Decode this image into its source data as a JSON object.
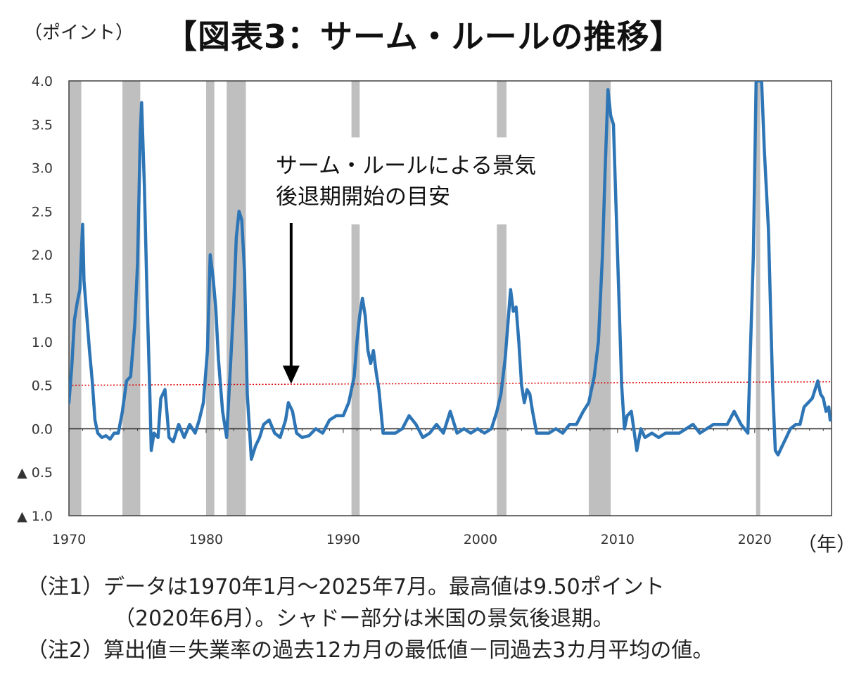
{
  "header": {
    "unit": "（ポイント）",
    "title": "【図表3：サーム・ルールの推移】"
  },
  "annotation": {
    "line1": "サーム・ルールによる景気",
    "line2": "後退期開始の目安"
  },
  "x_unit": "（年）",
  "notes": {
    "note1_line1": "（注1）データは1970年1月～2025年7月。最高値は9.50ポイント",
    "note1_line2": "（2020年6月）。シャドー部分は米国の景気後退期。",
    "note2": "（注2）算出値＝失業率の過去12カ月の最低値－同過去3カ月平均の値。"
  },
  "colors": {
    "series": "#2e75b6",
    "threshold": "#e00000",
    "recession": "#bfbfbf",
    "axis": "#404040"
  },
  "chart_data": {
    "type": "line",
    "ylim": [
      -1.0,
      4.0
    ],
    "xlim": [
      1970.0,
      2025.6
    ],
    "y_ticks": [
      {
        "value": 4.0,
        "label": "4.0"
      },
      {
        "value": 3.5,
        "label": "3.5"
      },
      {
        "value": 3.0,
        "label": "3.0"
      },
      {
        "value": 2.5,
        "label": "2.5"
      },
      {
        "value": 2.0,
        "label": "2.0"
      },
      {
        "value": 1.5,
        "label": "1.5"
      },
      {
        "value": 1.0,
        "label": "1.0"
      },
      {
        "value": 0.5,
        "label": "0.5"
      },
      {
        "value": 0.0,
        "label": "0.0"
      },
      {
        "value": -0.5,
        "label": "▲ 0.5"
      },
      {
        "value": -1.0,
        "label": "▲ 1.0"
      }
    ],
    "x_ticks": [
      {
        "value": 1970,
        "label": "1970"
      },
      {
        "value": 1980,
        "label": "1980"
      },
      {
        "value": 1990,
        "label": "1990"
      },
      {
        "value": 2000,
        "label": "2000"
      },
      {
        "value": 2010,
        "label": "2010"
      },
      {
        "value": 2020,
        "label": "2020"
      }
    ],
    "recessions": [
      [
        1970.0,
        1970.9
      ],
      [
        1973.9,
        1975.2
      ],
      [
        1980.0,
        1980.6
      ],
      [
        1981.5,
        1982.9
      ],
      [
        1990.6,
        1991.2
      ],
      [
        2001.2,
        2001.9
      ],
      [
        2007.9,
        2009.5
      ],
      [
        2020.1,
        2020.4
      ]
    ],
    "threshold": {
      "x": [
        1970.0,
        2025.6
      ],
      "y": [
        0.5,
        0.54
      ]
    },
    "arrow_target": {
      "x": 1986.2,
      "y": 0.5
    },
    "series": [
      {
        "x": [
          1970.0,
          1970.2,
          1970.4,
          1970.6,
          1970.8,
          1970.9,
          1971.0,
          1971.1,
          1971.3,
          1971.5,
          1971.7,
          1971.9,
          1972.1,
          1972.4,
          1972.7,
          1973.0,
          1973.3,
          1973.6,
          1973.9,
          1974.2,
          1974.5,
          1974.8,
          1975.0,
          1975.1,
          1975.2,
          1975.3,
          1975.5,
          1975.7,
          1975.9,
          1976.0,
          1976.2,
          1976.5,
          1976.7,
          1977.0,
          1977.3,
          1977.6,
          1978.0,
          1978.4,
          1978.8,
          1979.2,
          1979.5,
          1979.8,
          1980.1,
          1980.3,
          1980.5,
          1980.7,
          1980.9,
          1981.2,
          1981.5,
          1981.8,
          1982.0,
          1982.2,
          1982.4,
          1982.6,
          1982.8,
          1983.0,
          1983.3,
          1983.6,
          1983.9,
          1984.2,
          1984.6,
          1985.0,
          1985.4,
          1985.8,
          1986.0,
          1986.3,
          1986.6,
          1987.0,
          1987.5,
          1988.0,
          1988.5,
          1989.0,
          1989.5,
          1990.0,
          1990.4,
          1990.8,
          1991.0,
          1991.2,
          1991.4,
          1991.6,
          1991.8,
          1992.0,
          1992.2,
          1992.4,
          1992.6,
          1992.9,
          1993.3,
          1993.8,
          1994.3,
          1994.8,
          1995.3,
          1995.8,
          1996.3,
          1996.8,
          1997.3,
          1997.8,
          1998.3,
          1998.8,
          1999.3,
          1999.8,
          2000.3,
          2000.8,
          2001.2,
          2001.5,
          2001.8,
          2002.0,
          2002.2,
          2002.4,
          2002.6,
          2002.8,
          2003.0,
          2003.2,
          2003.4,
          2003.6,
          2003.8,
          2004.1,
          2004.5,
          2005.0,
          2005.5,
          2006.0,
          2006.5,
          2007.0,
          2007.5,
          2007.9,
          2008.3,
          2008.6,
          2008.9,
          2009.1,
          2009.3,
          2009.5,
          2009.7,
          2009.9,
          2010.1,
          2010.3,
          2010.5,
          2010.7,
          2011.0,
          2011.4,
          2011.7,
          2012.0,
          2012.5,
          2013.0,
          2013.5,
          2014.0,
          2014.5,
          2015.0,
          2015.5,
          2016.0,
          2016.5,
          2017.0,
          2017.5,
          2018.0,
          2018.5,
          2019.0,
          2019.5,
          2019.9,
          2020.1,
          2020.3,
          2020.5,
          2020.7,
          2021.0,
          2021.3,
          2021.5,
          2021.7,
          2022.0,
          2022.3,
          2022.6,
          2023.0,
          2023.3,
          2023.6,
          2023.9,
          2024.2,
          2024.4,
          2024.6,
          2024.8,
          2025.0,
          2025.2,
          2025.4,
          2025.5
        ],
        "y": [
          0.3,
          0.7,
          1.25,
          1.45,
          1.6,
          2.0,
          2.35,
          1.7,
          1.3,
          0.9,
          0.55,
          0.1,
          -0.05,
          -0.1,
          -0.08,
          -0.12,
          -0.05,
          -0.05,
          0.2,
          0.55,
          0.6,
          1.2,
          1.9,
          2.6,
          3.4,
          3.75,
          2.8,
          1.5,
          0.4,
          -0.25,
          -0.05,
          -0.1,
          0.35,
          0.45,
          -0.1,
          -0.15,
          0.05,
          -0.1,
          0.05,
          -0.05,
          0.1,
          0.3,
          0.9,
          2.0,
          1.75,
          1.4,
          0.8,
          0.2,
          -0.1,
          0.8,
          1.4,
          2.2,
          2.5,
          2.4,
          1.8,
          0.4,
          -0.35,
          -0.2,
          -0.1,
          0.05,
          0.1,
          -0.05,
          -0.1,
          0.1,
          0.3,
          0.2,
          -0.05,
          -0.1,
          -0.08,
          0.0,
          -0.05,
          0.1,
          0.15,
          0.15,
          0.3,
          0.6,
          1.0,
          1.3,
          1.5,
          1.3,
          0.9,
          0.75,
          0.9,
          0.65,
          0.45,
          -0.05,
          -0.05,
          -0.05,
          0.0,
          0.15,
          0.05,
          -0.1,
          -0.05,
          0.05,
          -0.05,
          0.2,
          -0.05,
          0.0,
          -0.05,
          0.0,
          -0.05,
          0.0,
          0.2,
          0.4,
          0.8,
          1.2,
          1.6,
          1.35,
          1.4,
          1.0,
          0.5,
          0.3,
          0.45,
          0.4,
          0.2,
          -0.05,
          -0.05,
          -0.05,
          0.0,
          -0.05,
          0.05,
          0.05,
          0.2,
          0.3,
          0.6,
          1.0,
          2.0,
          3.0,
          3.9,
          3.6,
          3.5,
          2.5,
          1.5,
          0.5,
          0.0,
          0.15,
          0.2,
          -0.25,
          0.0,
          -0.1,
          -0.05,
          -0.1,
          -0.05,
          -0.05,
          -0.05,
          0.0,
          0.05,
          -0.05,
          0.0,
          0.05,
          0.05,
          0.05,
          0.2,
          0.05,
          -0.05,
          2.0,
          4.0,
          4.0,
          4.0,
          3.2,
          2.3,
          0.5,
          -0.25,
          -0.3,
          -0.2,
          -0.1,
          0.0,
          0.05,
          0.05,
          0.25,
          0.3,
          0.35,
          0.45,
          0.55,
          0.4,
          0.35,
          0.2,
          0.25,
          0.1
        ]
      }
    ]
  }
}
